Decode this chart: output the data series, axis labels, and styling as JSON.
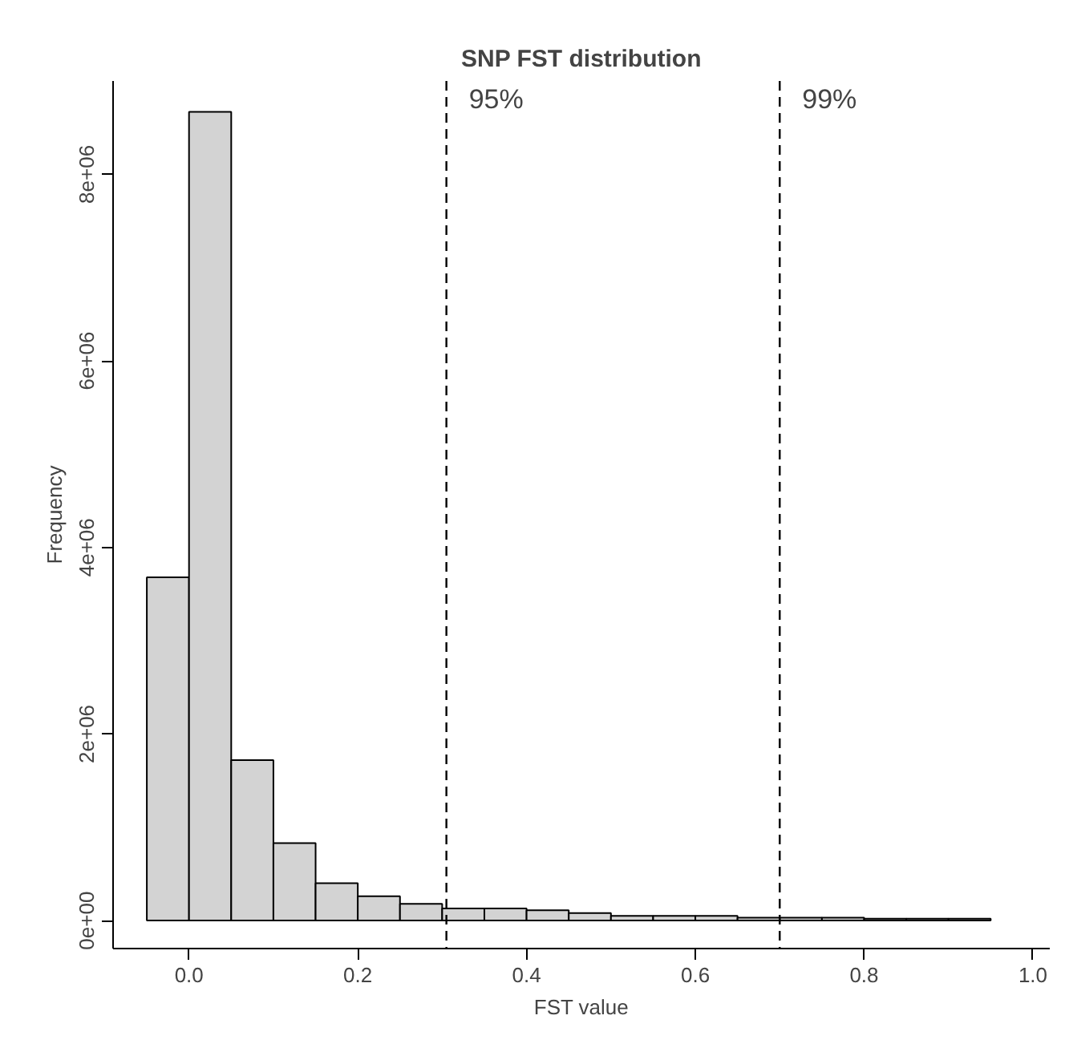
{
  "chart_data": {
    "type": "histogram",
    "title": "SNP FST distribution",
    "xlabel": "FST value",
    "ylabel": "Frequency",
    "bins": [
      -0.05,
      0.0,
      0.05,
      0.1,
      0.15,
      0.2,
      0.25,
      0.3,
      0.35,
      0.4,
      0.45,
      0.5,
      0.55,
      0.6,
      0.65,
      0.7,
      0.75,
      0.8,
      0.85,
      0.9,
      0.95
    ],
    "values": [
      3680000,
      8670000,
      1720000,
      830000,
      400000,
      260000,
      180000,
      130000,
      130000,
      110000,
      80000,
      50000,
      50000,
      50000,
      30000,
      30000,
      30000,
      20000,
      20000,
      20000
    ],
    "color": "#d3d3d3",
    "xlim": [
      -0.09,
      1.02
    ],
    "xticks": [
      {
        "value": 0,
        "label": "0.0"
      },
      0.2,
      0.4,
      0.6,
      0.8,
      {
        "value": 1,
        "label": "1.0"
      }
    ],
    "ylim": [
      -300000,
      9000000
    ],
    "yticks": [
      {
        "value": 0,
        "label": "0e+00"
      },
      {
        "value": 2000000,
        "label": "2e+06"
      },
      {
        "value": 4000000,
        "label": "4e+06"
      },
      {
        "value": 6000000,
        "label": "6e+06"
      },
      {
        "value": 8000000,
        "label": "8e+06"
      }
    ],
    "ref_lines": [
      {
        "axis": "x",
        "value": 0.305,
        "line_style": "dashed"
      },
      {
        "axis": "x",
        "value": 0.7,
        "line_style": "dashed"
      }
    ],
    "annotations": [
      {
        "text": "95%",
        "x": 0.305,
        "y": 8800000
      },
      {
        "text": "99%",
        "x": 0.7,
        "y": 8800000
      }
    ],
    "grid": false
  }
}
